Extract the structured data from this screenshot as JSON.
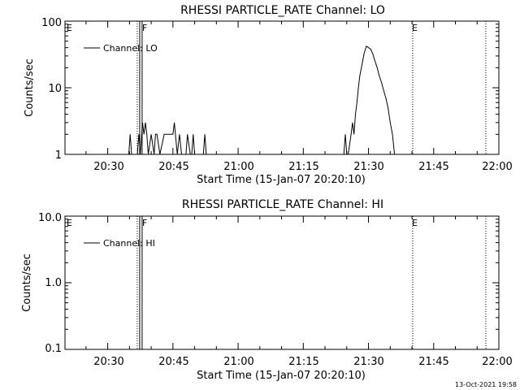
{
  "footer_timestamp": "13-Oct-2021 19:58",
  "chart_data": [
    {
      "type": "line",
      "title": "RHESSI PARTICLE_RATE Channel: LO",
      "xlabel": "Start Time (15-Jan-07 20:20:10)",
      "ylabel": "Counts/sec",
      "yscale": "log",
      "ylim": [
        1,
        100
      ],
      "xlim": [
        "20:20:10",
        "22:00:00"
      ],
      "y_tick_labels": [
        "1",
        "10",
        "100"
      ],
      "x_tick_labels": [
        "20:30",
        "20:45",
        "21:00",
        "21:15",
        "21:30",
        "21:45",
        "22:00"
      ],
      "legend": {
        "label": "Channel: LO",
        "placement": "top-left"
      },
      "markers": [
        {
          "label": "E",
          "time": "20:20:10",
          "style": "dotted"
        },
        {
          "label": "F",
          "time": "20:37:10",
          "style": "solid"
        },
        {
          "label": "E",
          "time": "21:40:10",
          "style": "dotted"
        },
        {
          "label": "",
          "time": "21:57:00",
          "style": "dotted"
        }
      ],
      "series": [
        {
          "name": "Channel: LO",
          "x": [
            "20:34:50",
            "20:35:10",
            "20:35:30",
            "20:36:00",
            "20:36:50",
            "20:37:10",
            "20:37:30",
            "20:38:00",
            "20:38:20",
            "20:38:40",
            "20:39:00",
            "20:39:20",
            "20:40:00",
            "20:40:40",
            "20:41:00",
            "20:41:20",
            "20:42:00",
            "20:43:00",
            "20:43:30",
            "20:44:00",
            "20:44:40",
            "20:45:00",
            "20:45:20",
            "20:46:00",
            "20:46:30",
            "20:47:00",
            "20:47:20",
            "20:48:00",
            "20:48:20",
            "20:49:00",
            "20:49:20",
            "20:49:40",
            "20:50:00",
            "20:50:20",
            "20:52:00",
            "20:52:20",
            "20:52:40",
            "21:24:20",
            "21:24:40",
            "21:25:00",
            "21:25:20",
            "21:26:00",
            "21:26:20",
            "21:26:40",
            "21:27:00",
            "21:27:20",
            "21:27:40",
            "21:28:00",
            "21:28:30",
            "21:29:00",
            "21:29:30",
            "21:30:00",
            "21:30:30",
            "21:31:00",
            "21:31:30",
            "21:32:00",
            "21:32:30",
            "21:33:00",
            "21:33:30",
            "21:34:00",
            "21:34:30",
            "21:35:00",
            "21:35:30",
            "21:36:00",
            "21:36:30",
            "21:37:00",
            "21:37:30",
            "21:38:00",
            "21:38:30",
            "21:39:00"
          ],
          "y": [
            1,
            2,
            1,
            1,
            1,
            2,
            1,
            3,
            2,
            3,
            2,
            1,
            2,
            1,
            2,
            2,
            1,
            2,
            2,
            2,
            2,
            2,
            3,
            1,
            2,
            1,
            1,
            1,
            2,
            1,
            1,
            2,
            1,
            1,
            1,
            2,
            1,
            1,
            2,
            1,
            1,
            2,
            3,
            2,
            4,
            6,
            10,
            15,
            22,
            33,
            42,
            40,
            38,
            32,
            25,
            20,
            15,
            12,
            9,
            7,
            5,
            3,
            2,
            1,
            1,
            1,
            1,
            1,
            1,
            1
          ]
        }
      ]
    },
    {
      "type": "line",
      "title": "RHESSI PARTICLE_RATE Channel: HI",
      "xlabel": "Start Time (15-Jan-07 20:20:10)",
      "ylabel": "Counts/sec",
      "yscale": "log",
      "ylim": [
        0.1,
        10
      ],
      "xlim": [
        "20:20:10",
        "22:00:00"
      ],
      "y_tick_labels": [
        "0.1",
        "1.0",
        "10.0"
      ],
      "x_tick_labels": [
        "20:30",
        "20:45",
        "21:00",
        "21:15",
        "21:30",
        "21:45",
        "22:00"
      ],
      "legend": {
        "label": "Channel: HI",
        "placement": "top-left"
      },
      "markers": [
        {
          "label": "E",
          "time": "20:20:10",
          "style": "dotted"
        },
        {
          "label": "F",
          "time": "20:37:10",
          "style": "solid"
        },
        {
          "label": "E",
          "time": "21:40:10",
          "style": "dotted"
        },
        {
          "label": "",
          "time": "21:57:00",
          "style": "dotted"
        }
      ],
      "series": [
        {
          "name": "Channel: HI",
          "x": [],
          "y": []
        }
      ]
    }
  ]
}
